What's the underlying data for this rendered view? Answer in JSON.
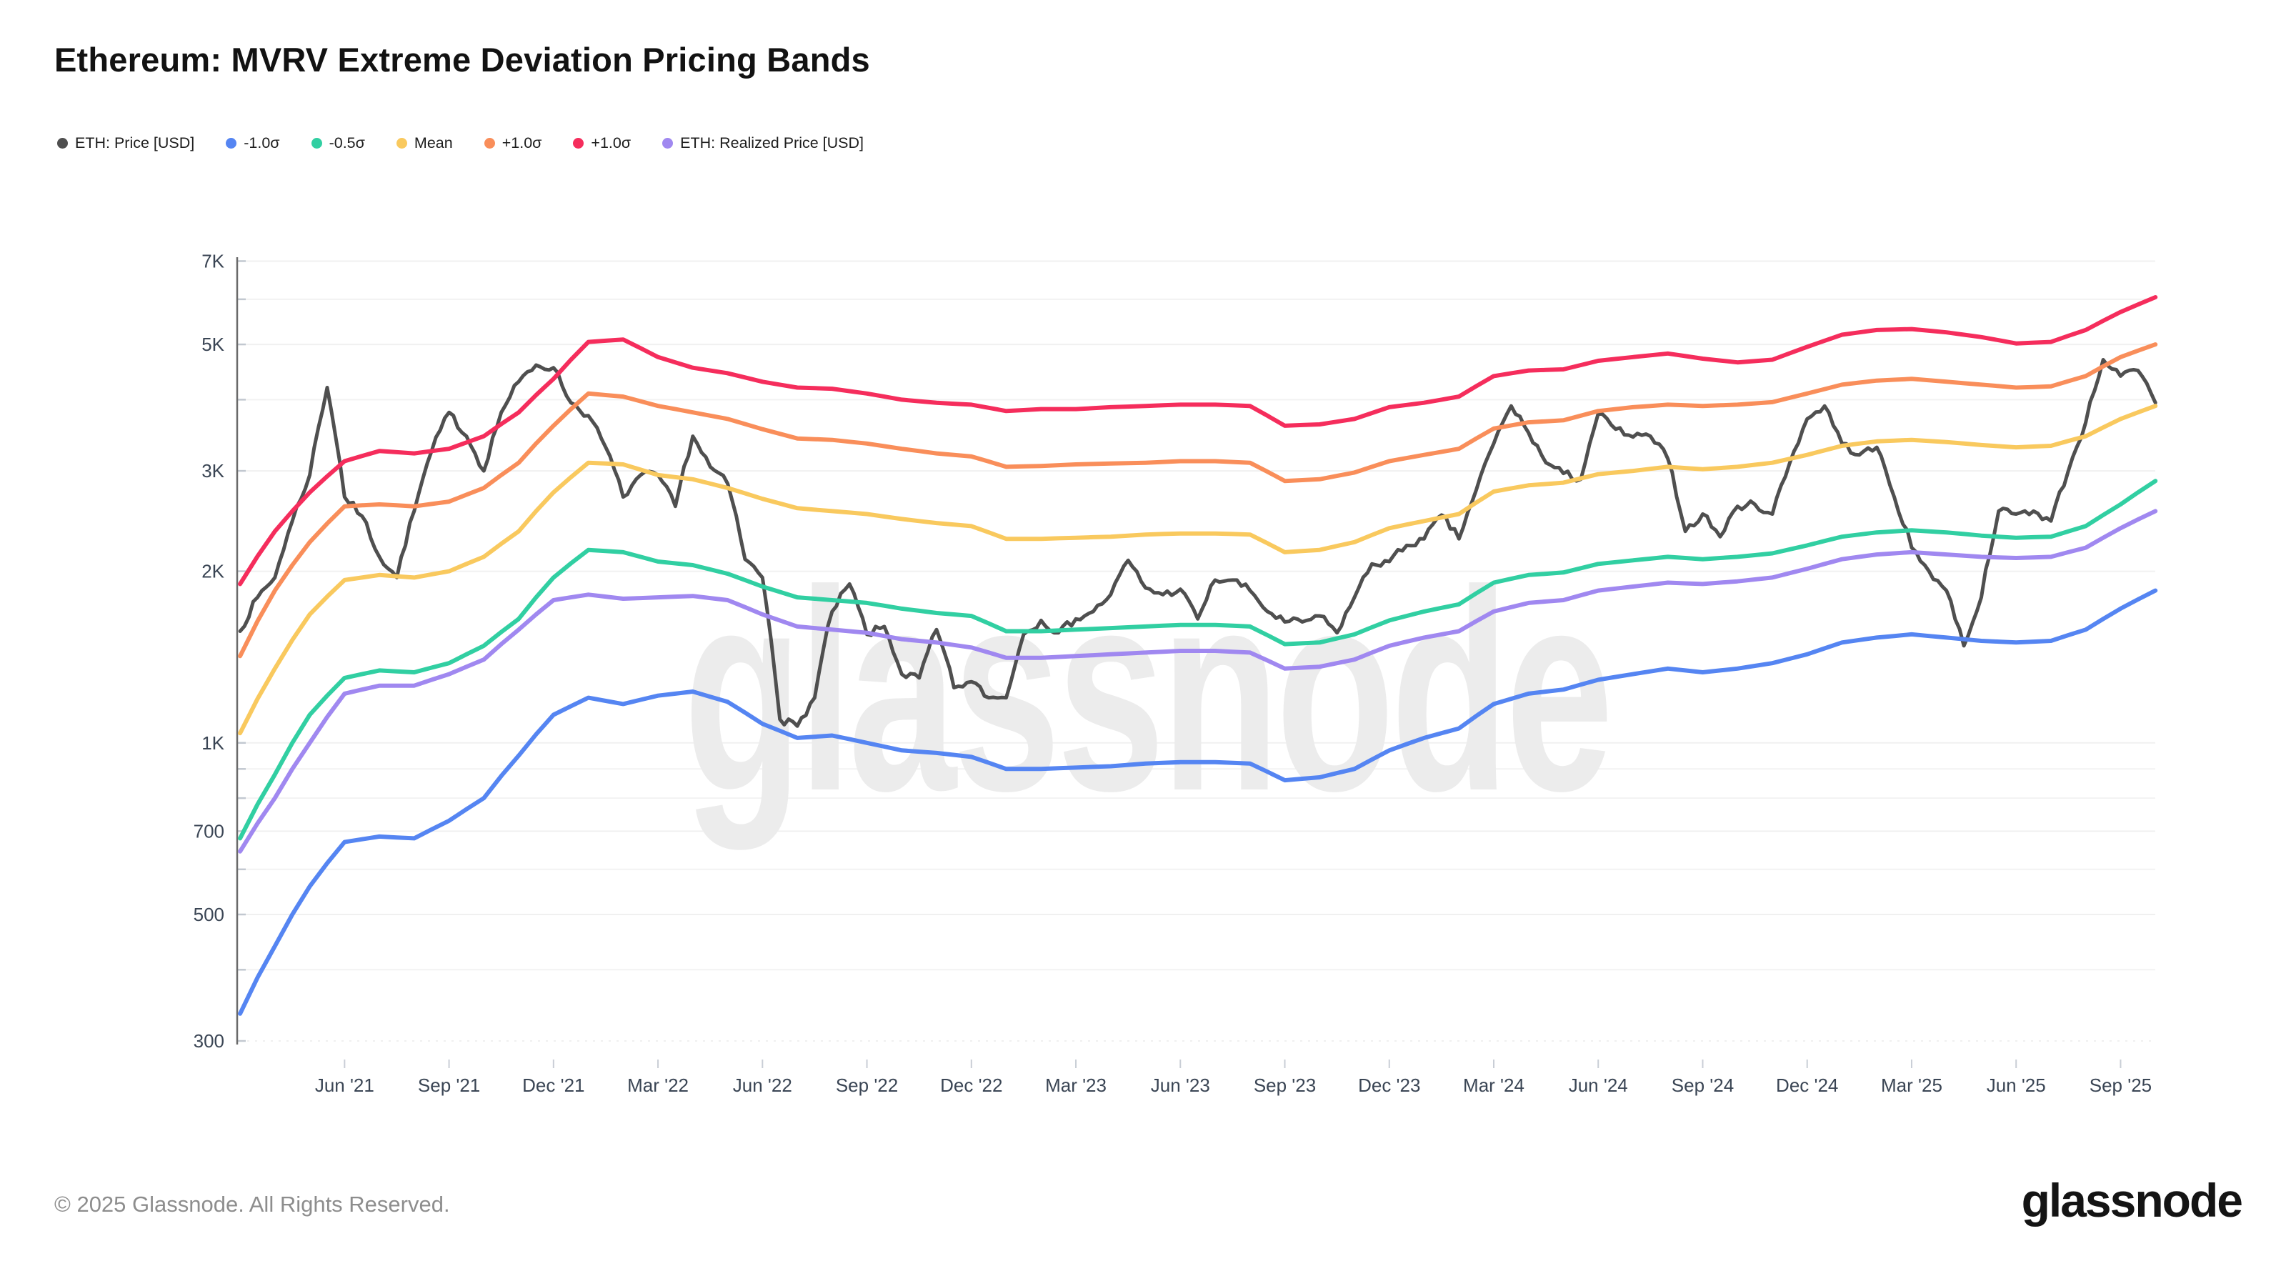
{
  "page": {
    "title": "Ethereum: MVRV Extreme Deviation Pricing Bands",
    "watermark": "glassnode",
    "footer_copyright": "© 2025 Glassnode. All Rights Reserved.",
    "brand": "glassnode"
  },
  "chart_data": {
    "type": "line",
    "title": "Ethereum: MVRV Extreme Deviation Pricing Bands",
    "y_scale": "log",
    "grid": true,
    "legend_position": "top-left",
    "unit": "USD",
    "x_start": 2021.16,
    "x_end": 2025.75,
    "ylim": [
      300,
      7050
    ],
    "y_ticks": [
      {
        "v": 300,
        "label": "300"
      },
      {
        "v": 500,
        "label": "500"
      },
      {
        "v": 700,
        "label": "700"
      },
      {
        "v": 1000,
        "label": "1K"
      },
      {
        "v": 2000,
        "label": "2K"
      },
      {
        "v": 3000,
        "label": "3K"
      },
      {
        "v": 5000,
        "label": "5K"
      },
      {
        "v": 7000,
        "label": "7K"
      }
    ],
    "y_minor": [
      400,
      600,
      800,
      900,
      4000,
      6000
    ],
    "x_ticks": [
      {
        "t": 2021.417,
        "label": "Jun '21"
      },
      {
        "t": 2021.667,
        "label": "Sep '21"
      },
      {
        "t": 2021.917,
        "label": "Dec '21"
      },
      {
        "t": 2022.167,
        "label": "Mar '22"
      },
      {
        "t": 2022.417,
        "label": "Jun '22"
      },
      {
        "t": 2022.667,
        "label": "Sep '22"
      },
      {
        "t": 2022.917,
        "label": "Dec '22"
      },
      {
        "t": 2023.167,
        "label": "Mar '23"
      },
      {
        "t": 2023.417,
        "label": "Jun '23"
      },
      {
        "t": 2023.667,
        "label": "Sep '23"
      },
      {
        "t": 2023.917,
        "label": "Dec '23"
      },
      {
        "t": 2024.167,
        "label": "Mar '24"
      },
      {
        "t": 2024.417,
        "label": "Jun '24"
      },
      {
        "t": 2024.667,
        "label": "Sep '24"
      },
      {
        "t": 2024.917,
        "label": "Dec '24"
      },
      {
        "t": 2025.167,
        "label": "Mar '25"
      },
      {
        "t": 2025.417,
        "label": "Jun '25"
      },
      {
        "t": 2025.667,
        "label": "Sep '25"
      }
    ],
    "series": [
      {
        "name": "ETH: Price [USD]",
        "color": "#4f4f4f",
        "width": 5,
        "jitter": 0.016,
        "x0": 2021.167,
        "dt": 0.0416667,
        "values": [
          1570,
          1800,
          1950,
          2450,
          2950,
          4200,
          2700,
          2500,
          2120,
          1950,
          2550,
          3250,
          3800,
          3450,
          3000,
          3800,
          4300,
          4600,
          4550,
          3950,
          3750,
          3300,
          2700,
          2950,
          2950,
          2600,
          3450,
          3050,
          2850,
          2100,
          1950,
          1100,
          1070,
          1200,
          1700,
          1900,
          1550,
          1600,
          1320,
          1300,
          1580,
          1250,
          1280,
          1200,
          1200,
          1550,
          1640,
          1560,
          1650,
          1700,
          1820,
          2090,
          1870,
          1820,
          1860,
          1650,
          1930,
          1930,
          1850,
          1700,
          1630,
          1630,
          1670,
          1560,
          1800,
          2060,
          2080,
          2220,
          2280,
          2510,
          2280,
          2780,
          3350,
          3900,
          3500,
          3100,
          2970,
          2900,
          3780,
          3550,
          3440,
          3450,
          3150,
          2350,
          2520,
          2300,
          2600,
          2620,
          2520,
          3100,
          3700,
          3900,
          3350,
          3200,
          3300,
          2700,
          2200,
          2000,
          1850,
          1480,
          1800,
          2550,
          2520,
          2550,
          2450,
          3000,
          3650,
          4700,
          4400,
          4500,
          3950
        ]
      },
      {
        "name": "-1.0σ",
        "color": "#5585f2",
        "width": 6,
        "jitter": 0,
        "x0": 2021.167,
        "dt": 0.0833333,
        "values": [
          335,
          440,
          560,
          670,
          685,
          680,
          730,
          800,
          950,
          1120,
          1200,
          1170,
          1210,
          1230,
          1180,
          1080,
          1020,
          1030,
          1000,
          970,
          960,
          945,
          900,
          900,
          905,
          910,
          920,
          925,
          925,
          920,
          860,
          870,
          900,
          970,
          1020,
          1060,
          1170,
          1220,
          1240,
          1290,
          1320,
          1350,
          1330,
          1350,
          1380,
          1430,
          1500,
          1530,
          1550,
          1530,
          1510,
          1500,
          1510,
          1580,
          1720,
          1850
        ]
      },
      {
        "name": "-0.5σ",
        "color": "#31cfa2",
        "width": 6,
        "jitter": 0,
        "x0": 2021.167,
        "dt": 0.0833333,
        "values": [
          680,
          880,
          1120,
          1300,
          1340,
          1330,
          1380,
          1480,
          1650,
          1950,
          2180,
          2160,
          2080,
          2050,
          1980,
          1880,
          1800,
          1780,
          1760,
          1720,
          1690,
          1670,
          1570,
          1570,
          1580,
          1590,
          1600,
          1610,
          1610,
          1600,
          1490,
          1500,
          1550,
          1640,
          1700,
          1750,
          1910,
          1970,
          1990,
          2060,
          2090,
          2120,
          2100,
          2120,
          2150,
          2220,
          2300,
          2340,
          2360,
          2340,
          2310,
          2290,
          2300,
          2400,
          2620,
          2880
        ]
      },
      {
        "name": "Mean",
        "color": "#f9c95e",
        "width": 6,
        "jitter": 0,
        "x0": 2021.167,
        "dt": 0.0833333,
        "values": [
          1040,
          1350,
          1680,
          1930,
          1970,
          1950,
          2000,
          2120,
          2350,
          2750,
          3100,
          3080,
          2950,
          2900,
          2800,
          2680,
          2580,
          2550,
          2520,
          2470,
          2430,
          2400,
          2280,
          2280,
          2290,
          2300,
          2320,
          2330,
          2330,
          2320,
          2160,
          2180,
          2250,
          2380,
          2450,
          2520,
          2760,
          2830,
          2860,
          2960,
          3000,
          3050,
          3020,
          3050,
          3100,
          3200,
          3320,
          3380,
          3400,
          3370,
          3330,
          3300,
          3320,
          3450,
          3700,
          3900
        ]
      },
      {
        "name": "+1.0σ",
        "color": "#f98e5a",
        "width": 6,
        "jitter": 0,
        "x0": 2021.167,
        "dt": 0.0833333,
        "values": [
          1420,
          1850,
          2250,
          2600,
          2620,
          2600,
          2650,
          2800,
          3100,
          3600,
          4100,
          4050,
          3900,
          3800,
          3700,
          3550,
          3420,
          3400,
          3350,
          3280,
          3220,
          3180,
          3050,
          3060,
          3080,
          3090,
          3100,
          3120,
          3120,
          3100,
          2880,
          2900,
          2980,
          3120,
          3200,
          3280,
          3560,
          3650,
          3680,
          3820,
          3880,
          3920,
          3900,
          3920,
          3960,
          4100,
          4250,
          4320,
          4350,
          4300,
          4250,
          4200,
          4220,
          4400,
          4750,
          5000
        ]
      },
      {
        "name": "+1.0σ",
        "color": "#f52d5c",
        "width": 6,
        "jitter": 0,
        "x0": 2021.167,
        "dt": 0.0833333,
        "values": [
          1900,
          2350,
          2750,
          3120,
          3250,
          3220,
          3280,
          3450,
          3800,
          4350,
          5050,
          5100,
          4750,
          4550,
          4450,
          4300,
          4200,
          4180,
          4100,
          4000,
          3950,
          3920,
          3820,
          3850,
          3850,
          3880,
          3900,
          3920,
          3920,
          3900,
          3600,
          3620,
          3700,
          3880,
          3950,
          4050,
          4400,
          4500,
          4520,
          4680,
          4750,
          4820,
          4720,
          4650,
          4700,
          4950,
          5200,
          5300,
          5320,
          5250,
          5150,
          5020,
          5050,
          5300,
          5700,
          6050
        ]
      },
      {
        "name": "ETH: Realized Price [USD]",
        "color": "#a088f0",
        "width": 6,
        "jitter": 0,
        "x0": 2021.167,
        "dt": 0.0833333,
        "values": [
          645,
          800,
          1000,
          1220,
          1260,
          1260,
          1320,
          1400,
          1580,
          1780,
          1820,
          1790,
          1800,
          1810,
          1780,
          1680,
          1600,
          1580,
          1560,
          1520,
          1500,
          1470,
          1410,
          1410,
          1420,
          1430,
          1440,
          1450,
          1450,
          1440,
          1350,
          1360,
          1400,
          1480,
          1530,
          1570,
          1700,
          1760,
          1780,
          1850,
          1880,
          1910,
          1900,
          1920,
          1950,
          2020,
          2100,
          2140,
          2160,
          2140,
          2120,
          2110,
          2120,
          2200,
          2380,
          2550
        ]
      }
    ]
  }
}
